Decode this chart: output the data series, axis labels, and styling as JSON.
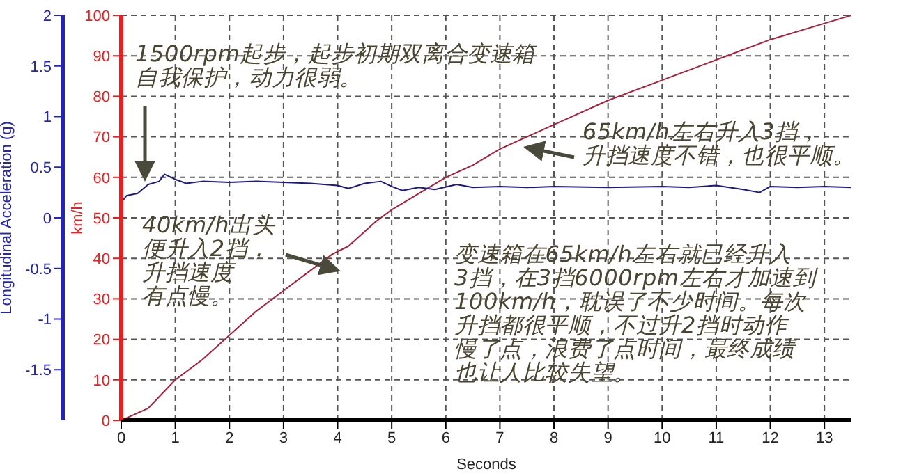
{
  "chart_data": {
    "type": "line",
    "xlabel": "Seconds",
    "ylabel": "Longitudinal Acceleration (g)",
    "y2label": "km/h",
    "xlim": [
      0,
      13.5
    ],
    "xticks": [
      0,
      1,
      2,
      3,
      4,
      5,
      6,
      7,
      8,
      9,
      10,
      11,
      12,
      13
    ],
    "ylim": [
      -2,
      2
    ],
    "yticks": [
      -1.5,
      -1,
      -0.5,
      0,
      0.5,
      1,
      1.5,
      2
    ],
    "y2lim": [
      0,
      100
    ],
    "y2ticks": [
      0,
      10,
      20,
      30,
      40,
      50,
      60,
      70,
      80,
      90,
      100
    ],
    "grid": true,
    "line_style": "solid",
    "marker": "none",
    "series": [
      {
        "color": "#a8203a",
        "axis": "y2",
        "x": [
          0,
          0.5,
          1,
          1.5,
          2,
          2.5,
          3,
          3.5,
          3.9,
          4.2,
          4.7,
          5,
          5.5,
          6,
          6.5,
          7,
          8,
          9,
          10,
          11,
          12,
          13,
          13.5
        ],
        "values": [
          0,
          3,
          10,
          15,
          21,
          27,
          32,
          37,
          41,
          43,
          49,
          52,
          56,
          60,
          63,
          67,
          73,
          79,
          84,
          89,
          94,
          98,
          100
        ]
      },
      {
        "color": "#1a1a80",
        "axis": "y",
        "x": [
          0,
          0.1,
          0.3,
          0.5,
          0.7,
          0.8,
          1,
          1.2,
          1.5,
          2,
          2.5,
          3,
          3.5,
          4,
          4.2,
          4.5,
          4.8,
          5,
          5.2,
          5.5,
          5.8,
          6.2,
          6.5,
          7,
          7.5,
          8,
          9,
          10,
          10.5,
          11,
          11.5,
          11.8,
          12,
          12.5,
          13,
          13.5
        ],
        "values": [
          0.15,
          0.22,
          0.24,
          0.33,
          0.36,
          0.43,
          0.38,
          0.34,
          0.36,
          0.35,
          0.36,
          0.35,
          0.34,
          0.32,
          0.29,
          0.34,
          0.36,
          0.31,
          0.27,
          0.3,
          0.28,
          0.33,
          0.3,
          0.31,
          0.3,
          0.31,
          0.3,
          0.31,
          0.3,
          0.32,
          0.28,
          0.25,
          0.31,
          0.3,
          0.31,
          0.3
        ]
      }
    ],
    "annotations": [
      "1500rpm起步，起步初期双离合变速箱自我保护，动力很弱。",
      "40km/h出头便升入2挡，升挡速度有点慢。",
      "65km/h左右升入3挡，升挡速度不错，也很平顺。",
      "变速箱在65km/h左右就已经升入3挡，在3挡6000rpm左右才加速到100km/h，耽误了不少时间。每次升挡都很平顺，不过升2挡时动作慢了点，浪费了点时间，最终成绩也让人比较失望。"
    ]
  }
}
